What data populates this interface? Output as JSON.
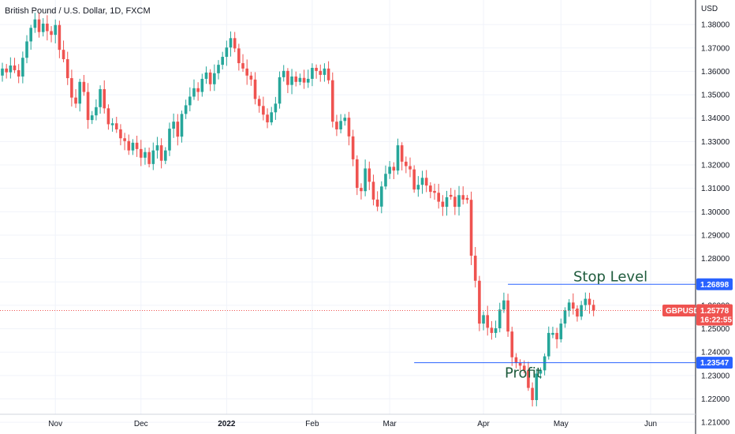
{
  "chart_data": {
    "type": "candlestick",
    "title": "British Pound / U.S. Dollar, 1D, FXCM",
    "currency_label": "USD",
    "symbol": "GBPUSD",
    "last_price": "1.25778",
    "countdown": "16:22:55",
    "y_range": [
      1.205,
      1.3905
    ],
    "y_ticks": [
      "1.21000",
      "1.22000",
      "1.23000",
      "1.24000",
      "1.25000",
      "1.26000",
      "1.27000",
      "1.28000",
      "1.29000",
      "1.30000",
      "1.31000",
      "1.32000",
      "1.33000",
      "1.34000",
      "1.35000",
      "1.36000",
      "1.37000",
      "1.38000"
    ],
    "x_ticks": [
      {
        "label": "Nov",
        "index": 13
      },
      {
        "label": "Dec",
        "index": 34
      },
      {
        "label": "2022",
        "index": 55
      },
      {
        "label": "Feb",
        "index": 76
      },
      {
        "label": "Mar",
        "index": 95
      },
      {
        "label": "Apr",
        "index": 118
      },
      {
        "label": "May",
        "index": 137
      },
      {
        "label": "Jun",
        "index": 159
      }
    ],
    "annotations": [
      {
        "text": "Stop Level",
        "price": 1.26898,
        "tag": "1.26898",
        "from_index": 124
      },
      {
        "text": "Profit",
        "price": 1.23547,
        "tag": "1.23547",
        "from_index": 101
      }
    ],
    "colors": {
      "up": "#26a69a",
      "down": "#ef5350",
      "level_line": "#2962ff",
      "price_line": "#ef5350"
    },
    "closes": [
      1.3612,
      1.3596,
      1.3625,
      1.3605,
      1.3578,
      1.3658,
      1.3728,
      1.3786,
      1.3822,
      1.3768,
      1.3804,
      1.3772,
      1.3756,
      1.3798,
      1.3692,
      1.3652,
      1.3571,
      1.3488,
      1.3462,
      1.3555,
      1.3512,
      1.3392,
      1.3412,
      1.3447,
      1.3524,
      1.3442,
      1.3374,
      1.3378,
      1.3352,
      1.3314,
      1.3302,
      1.3262,
      1.3295,
      1.3268,
      1.3231,
      1.3255,
      1.3204,
      1.3262,
      1.3284,
      1.3218,
      1.3262,
      1.3355,
      1.3385,
      1.3321,
      1.3418,
      1.3455,
      1.3492,
      1.3528,
      1.3512,
      1.3568,
      1.3595,
      1.3545,
      1.3592,
      1.3628,
      1.3662,
      1.3702,
      1.3742,
      1.3698,
      1.3635,
      1.3612,
      1.3582,
      1.3565,
      1.3482,
      1.3452,
      1.3415,
      1.3382,
      1.3425,
      1.3462,
      1.3575,
      1.3602,
      1.3542,
      1.3578,
      1.3555,
      1.3572,
      1.3552,
      1.3568,
      1.3615,
      1.3602,
      1.3585,
      1.3612,
      1.3562,
      1.3385,
      1.3352,
      1.3388,
      1.3402,
      1.3322,
      1.3224,
      1.3102,
      1.3088,
      1.3185,
      1.3128,
      1.3052,
      1.3022,
      1.3108,
      1.3162,
      1.3192,
      1.3176,
      1.3284,
      1.3214,
      1.3195,
      1.3181,
      1.3095,
      1.3115,
      1.3145,
      1.3112,
      1.3085,
      1.3081,
      1.3043,
      1.3021,
      1.3062,
      1.3064,
      1.3021,
      1.3071,
      1.3052,
      1.3051,
      1.2812,
      1.2705,
      1.2522,
      1.2558,
      1.2504,
      1.2482,
      1.2502,
      1.2582,
      1.2621,
      1.2488,
      1.2378,
      1.2355,
      1.2342,
      1.2322,
      1.2247,
      1.2195,
      1.2308,
      1.2322,
      1.2382,
      1.2482,
      1.2482,
      1.2455,
      1.2522,
      1.2578,
      1.2612,
      1.2586,
      1.2552,
      1.2601,
      1.2628,
      1.2602,
      1.2578
    ]
  }
}
